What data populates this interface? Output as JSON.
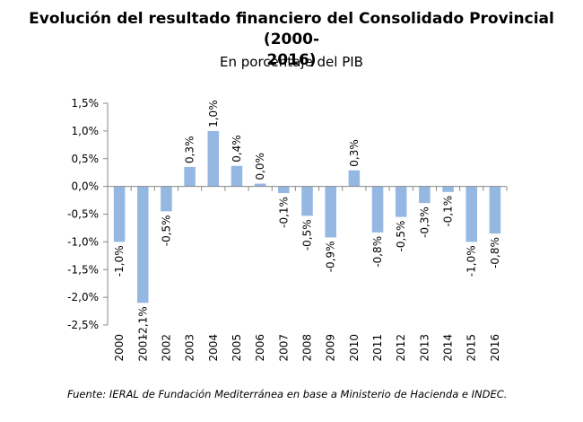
{
  "chart_data": {
    "type": "bar",
    "title_line1": "Evolución del resultado financiero del Consolidado Provincial (2000-",
    "title_line2": "2016)",
    "subtitle": "En porcentaje del PIB",
    "categories": [
      "2000",
      "2001",
      "2002",
      "2003",
      "2004",
      "2005",
      "2006",
      "2007",
      "2008",
      "2009",
      "2010",
      "2011",
      "2012",
      "2013",
      "2014",
      "2015",
      "2016"
    ],
    "values": [
      -1.0,
      -2.1,
      -0.5,
      0.3,
      1.0,
      0.4,
      0.0,
      -0.1,
      -0.5,
      -0.9,
      0.3,
      -0.8,
      -0.5,
      -0.3,
      -0.1,
      -1.0,
      -0.8
    ],
    "bar_values": [
      -1.0,
      -2.1,
      -0.45,
      0.35,
      1.0,
      0.37,
      0.05,
      -0.12,
      -0.53,
      -0.92,
      0.29,
      -0.83,
      -0.55,
      -0.3,
      -0.1,
      -1.0,
      -0.85
    ],
    "data_labels": [
      "-1,0%",
      "-2,1%",
      "-0,5%",
      "0,3%",
      "1,0%",
      "0,4%",
      "0,0%",
      "-0,1%",
      "-0,5%",
      "-0,9%",
      "0,3%",
      "-0,8%",
      "-0,5%",
      "-0,3%",
      "-0,1%",
      "-1,0%",
      "-0,8%"
    ],
    "yticks": [
      1.5,
      1.0,
      0.5,
      0.0,
      -0.5,
      -1.0,
      -1.5,
      -2.0,
      -2.5
    ],
    "ytick_labels": [
      "1,5%",
      "1,0%",
      "0,5%",
      "0,0%",
      "-0,5%",
      "-1,0%",
      "-1,5%",
      "-2,0%",
      "-2,5%"
    ],
    "ylim": [
      -2.5,
      1.5
    ],
    "grid": false,
    "bar_color": "#95b8e3",
    "axis_color": "#888888"
  },
  "source": "Fuente: IERAL de Fundación Mediterránea en base a Ministerio de Hacienda e INDEC."
}
